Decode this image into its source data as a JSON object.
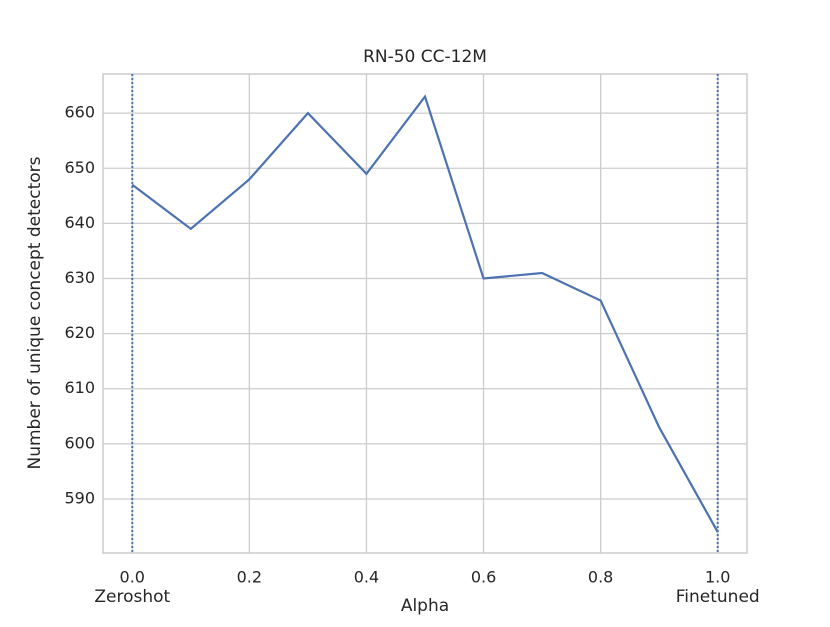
{
  "chart_data": {
    "type": "line",
    "title": "RN-50 CC-12M",
    "xlabel": "Alpha",
    "ylabel": "Number of unique concept detectors",
    "x": [
      0,
      0.1,
      0.2,
      0.3,
      0.4,
      0.5,
      0.6,
      0.7,
      0.8,
      0.9,
      1
    ],
    "series": [
      {
        "name": "RN-50 CC-12M",
        "color": "#4c72b0",
        "values": [
          647,
          639,
          648,
          660,
          649,
          663,
          630,
          631,
          626,
          603,
          584
        ]
      }
    ],
    "xlim": [
      -0.05,
      1.05
    ],
    "xticks": [
      {
        "value": 0,
        "label": "0.0"
      },
      0.2,
      0.4,
      0.6,
      0.8,
      {
        "value": 1,
        "label": "1.0"
      }
    ],
    "ylim": [
      580.2,
      667.1
    ],
    "yticks": [
      590,
      600,
      610,
      620,
      630,
      640,
      650,
      660
    ],
    "grid": true,
    "annotations": [
      {
        "text": "Zeroshot",
        "x": 0
      },
      {
        "text": "Finetuned",
        "x": 1
      }
    ]
  }
}
